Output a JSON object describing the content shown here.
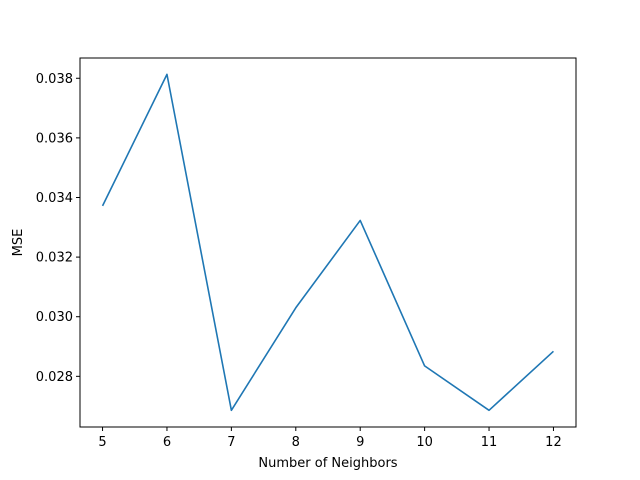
{
  "chart_data": {
    "type": "line",
    "title": "",
    "xlabel": "Number of Neighbors",
    "ylabel": "MSE",
    "x": [
      5,
      6,
      7,
      8,
      9,
      10,
      11,
      12
    ],
    "series": [
      {
        "values": [
          0.03372,
          0.03813,
          0.02686,
          0.0303,
          0.03323,
          0.02835,
          0.02686,
          0.02884
        ]
      }
    ],
    "xlim": [
      4.65,
      12.35
    ],
    "ylim": [
      0.0263,
      0.03868
    ],
    "xticks": [
      5,
      6,
      7,
      8,
      9,
      10,
      11,
      12
    ],
    "yticks": [
      0.028,
      0.03,
      0.032,
      0.034,
      0.036,
      0.038
    ],
    "ytick_labels": [
      "0.028",
      "0.030",
      "0.032",
      "0.034",
      "0.036",
      "0.038"
    ],
    "grid": false,
    "line_color": "#1f77b4"
  }
}
